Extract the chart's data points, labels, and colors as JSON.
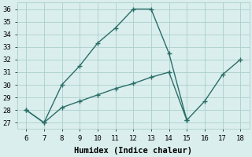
{
  "line1_x": [
    6,
    7,
    8,
    9,
    10,
    11,
    12,
    13,
    14,
    15
  ],
  "line1_y": [
    28,
    27,
    30,
    31.5,
    33.3,
    34.5,
    36,
    36,
    32.5,
    27.2
  ],
  "line2_x": [
    6,
    7,
    8,
    9,
    10,
    11,
    12,
    13,
    14,
    15,
    16,
    17,
    18
  ],
  "line2_y": [
    28,
    27,
    28.2,
    28.7,
    29.2,
    29.7,
    30.1,
    30.6,
    31.0,
    27.2,
    28.7,
    30.8,
    32.0
  ],
  "line_color": "#2a6e68",
  "bg_color": "#daeeed",
  "grid_color": "#aacfcc",
  "xlabel": "Humidex (Indice chaleur)",
  "xlim": [
    5.5,
    18.5
  ],
  "ylim": [
    26.5,
    36.5
  ],
  "xticks": [
    6,
    7,
    8,
    9,
    10,
    11,
    12,
    13,
    14,
    15,
    16,
    17,
    18
  ],
  "yticks": [
    27,
    28,
    29,
    30,
    31,
    32,
    33,
    34,
    35,
    36
  ],
  "marker": "+",
  "markersize": 4,
  "linewidth": 1.0,
  "font_family": "monospace",
  "tick_fontsize": 6.5,
  "xlabel_fontsize": 7.5
}
